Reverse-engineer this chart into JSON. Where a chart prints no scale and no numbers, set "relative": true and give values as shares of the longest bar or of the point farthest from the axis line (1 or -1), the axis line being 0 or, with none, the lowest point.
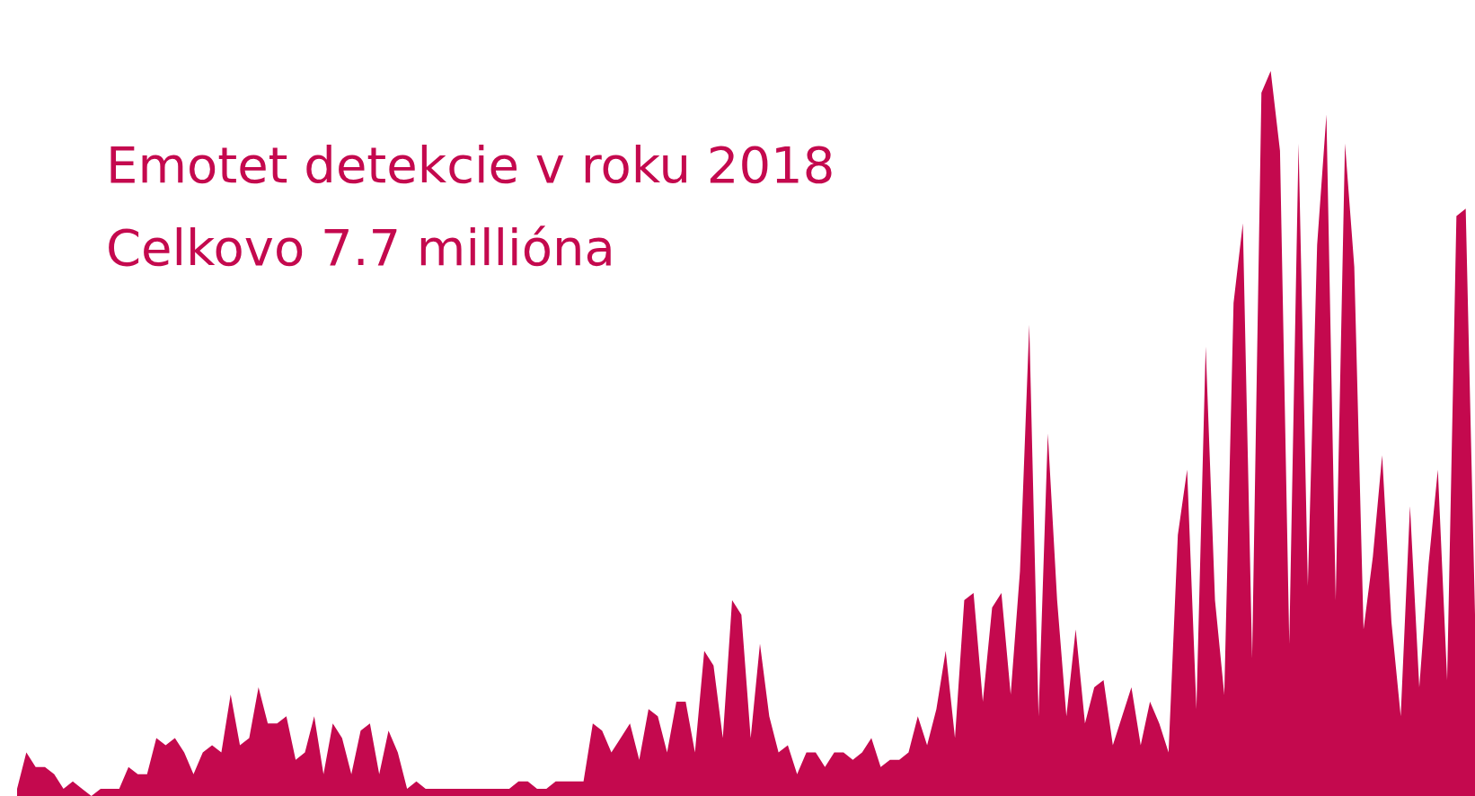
{
  "chart_data": {
    "type": "area",
    "title": "Emotet detekcie v roku 2018",
    "subtitle": "Celkovo 7.7 millióna",
    "relative": true,
    "legend": false,
    "marker": "none",
    "categories": [
      null,
      null,
      null,
      null,
      null,
      null,
      null,
      null,
      null,
      null,
      null,
      null,
      null,
      null,
      null,
      null,
      null,
      null,
      null,
      null,
      null,
      null,
      null,
      null,
      null,
      null,
      null,
      null,
      null,
      null,
      null,
      null,
      null,
      null,
      null,
      null,
      null,
      null,
      null,
      null,
      null,
      null,
      null,
      null,
      null,
      null,
      null,
      null,
      null,
      null,
      null,
      null,
      null,
      null,
      null,
      null,
      null,
      null,
      null,
      null,
      null,
      null,
      null,
      null,
      null,
      null,
      null,
      null,
      null,
      null,
      null,
      null,
      null,
      null,
      null,
      null,
      null,
      null,
      null,
      null,
      null,
      null,
      null,
      null,
      null,
      null,
      null,
      null,
      null,
      null,
      null,
      null,
      null,
      null,
      null,
      null,
      null,
      null,
      null,
      null,
      null,
      null,
      null,
      null,
      null,
      null,
      null,
      null,
      null,
      null,
      null,
      null,
      null,
      null,
      null,
      null,
      null,
      null,
      null,
      null,
      null,
      null,
      null,
      null,
      null,
      null,
      null,
      null,
      null,
      null,
      null,
      null,
      null,
      null,
      null,
      null,
      null,
      null,
      null,
      null,
      null,
      null,
      null,
      null,
      null,
      null,
      null,
      null,
      null,
      null,
      null,
      null,
      null,
      null,
      null,
      null,
      null,
      null
    ],
    "series": [
      {
        "color": "#c4094e",
        "values": [
          0.01,
          0.06,
          0.04,
          0.04,
          0.03,
          0.01,
          0.02,
          0.01,
          0.0,
          0.01,
          0.01,
          0.01,
          0.04,
          0.03,
          0.03,
          0.08,
          0.07,
          0.08,
          0.06,
          0.03,
          0.06,
          0.07,
          0.06,
          0.14,
          0.07,
          0.08,
          0.15,
          0.1,
          0.1,
          0.11,
          0.05,
          0.06,
          0.11,
          0.03,
          0.1,
          0.08,
          0.03,
          0.09,
          0.1,
          0.03,
          0.09,
          0.06,
          0.01,
          0.02,
          0.01,
          0.01,
          0.01,
          0.01,
          0.01,
          0.01,
          0.01,
          0.01,
          0.01,
          0.01,
          0.02,
          0.02,
          0.01,
          0.01,
          0.02,
          0.02,
          0.02,
          0.02,
          0.1,
          0.09,
          0.06,
          0.08,
          0.1,
          0.05,
          0.12,
          0.11,
          0.06,
          0.13,
          0.13,
          0.06,
          0.2,
          0.18,
          0.08,
          0.27,
          0.25,
          0.08,
          0.21,
          0.11,
          0.06,
          0.07,
          0.03,
          0.06,
          0.06,
          0.04,
          0.06,
          0.06,
          0.05,
          0.06,
          0.08,
          0.04,
          0.05,
          0.05,
          0.06,
          0.11,
          0.07,
          0.12,
          0.2,
          0.08,
          0.27,
          0.28,
          0.13,
          0.26,
          0.28,
          0.14,
          0.31,
          0.65,
          0.11,
          0.5,
          0.27,
          0.11,
          0.23,
          0.1,
          0.15,
          0.16,
          0.07,
          0.11,
          0.15,
          0.07,
          0.13,
          0.1,
          0.06,
          0.36,
          0.45,
          0.12,
          0.62,
          0.27,
          0.14,
          0.68,
          0.79,
          0.19,
          0.97,
          1,
          0.89,
          0.21,
          0.9,
          0.29,
          0.76,
          0.94,
          0.27,
          0.9,
          0.73,
          0.23,
          0.33,
          0.47,
          0.24,
          0.11,
          0.4,
          0.15,
          0.32,
          0.45,
          0.16,
          0.8,
          0.81,
          0.25
        ]
      }
    ]
  }
}
